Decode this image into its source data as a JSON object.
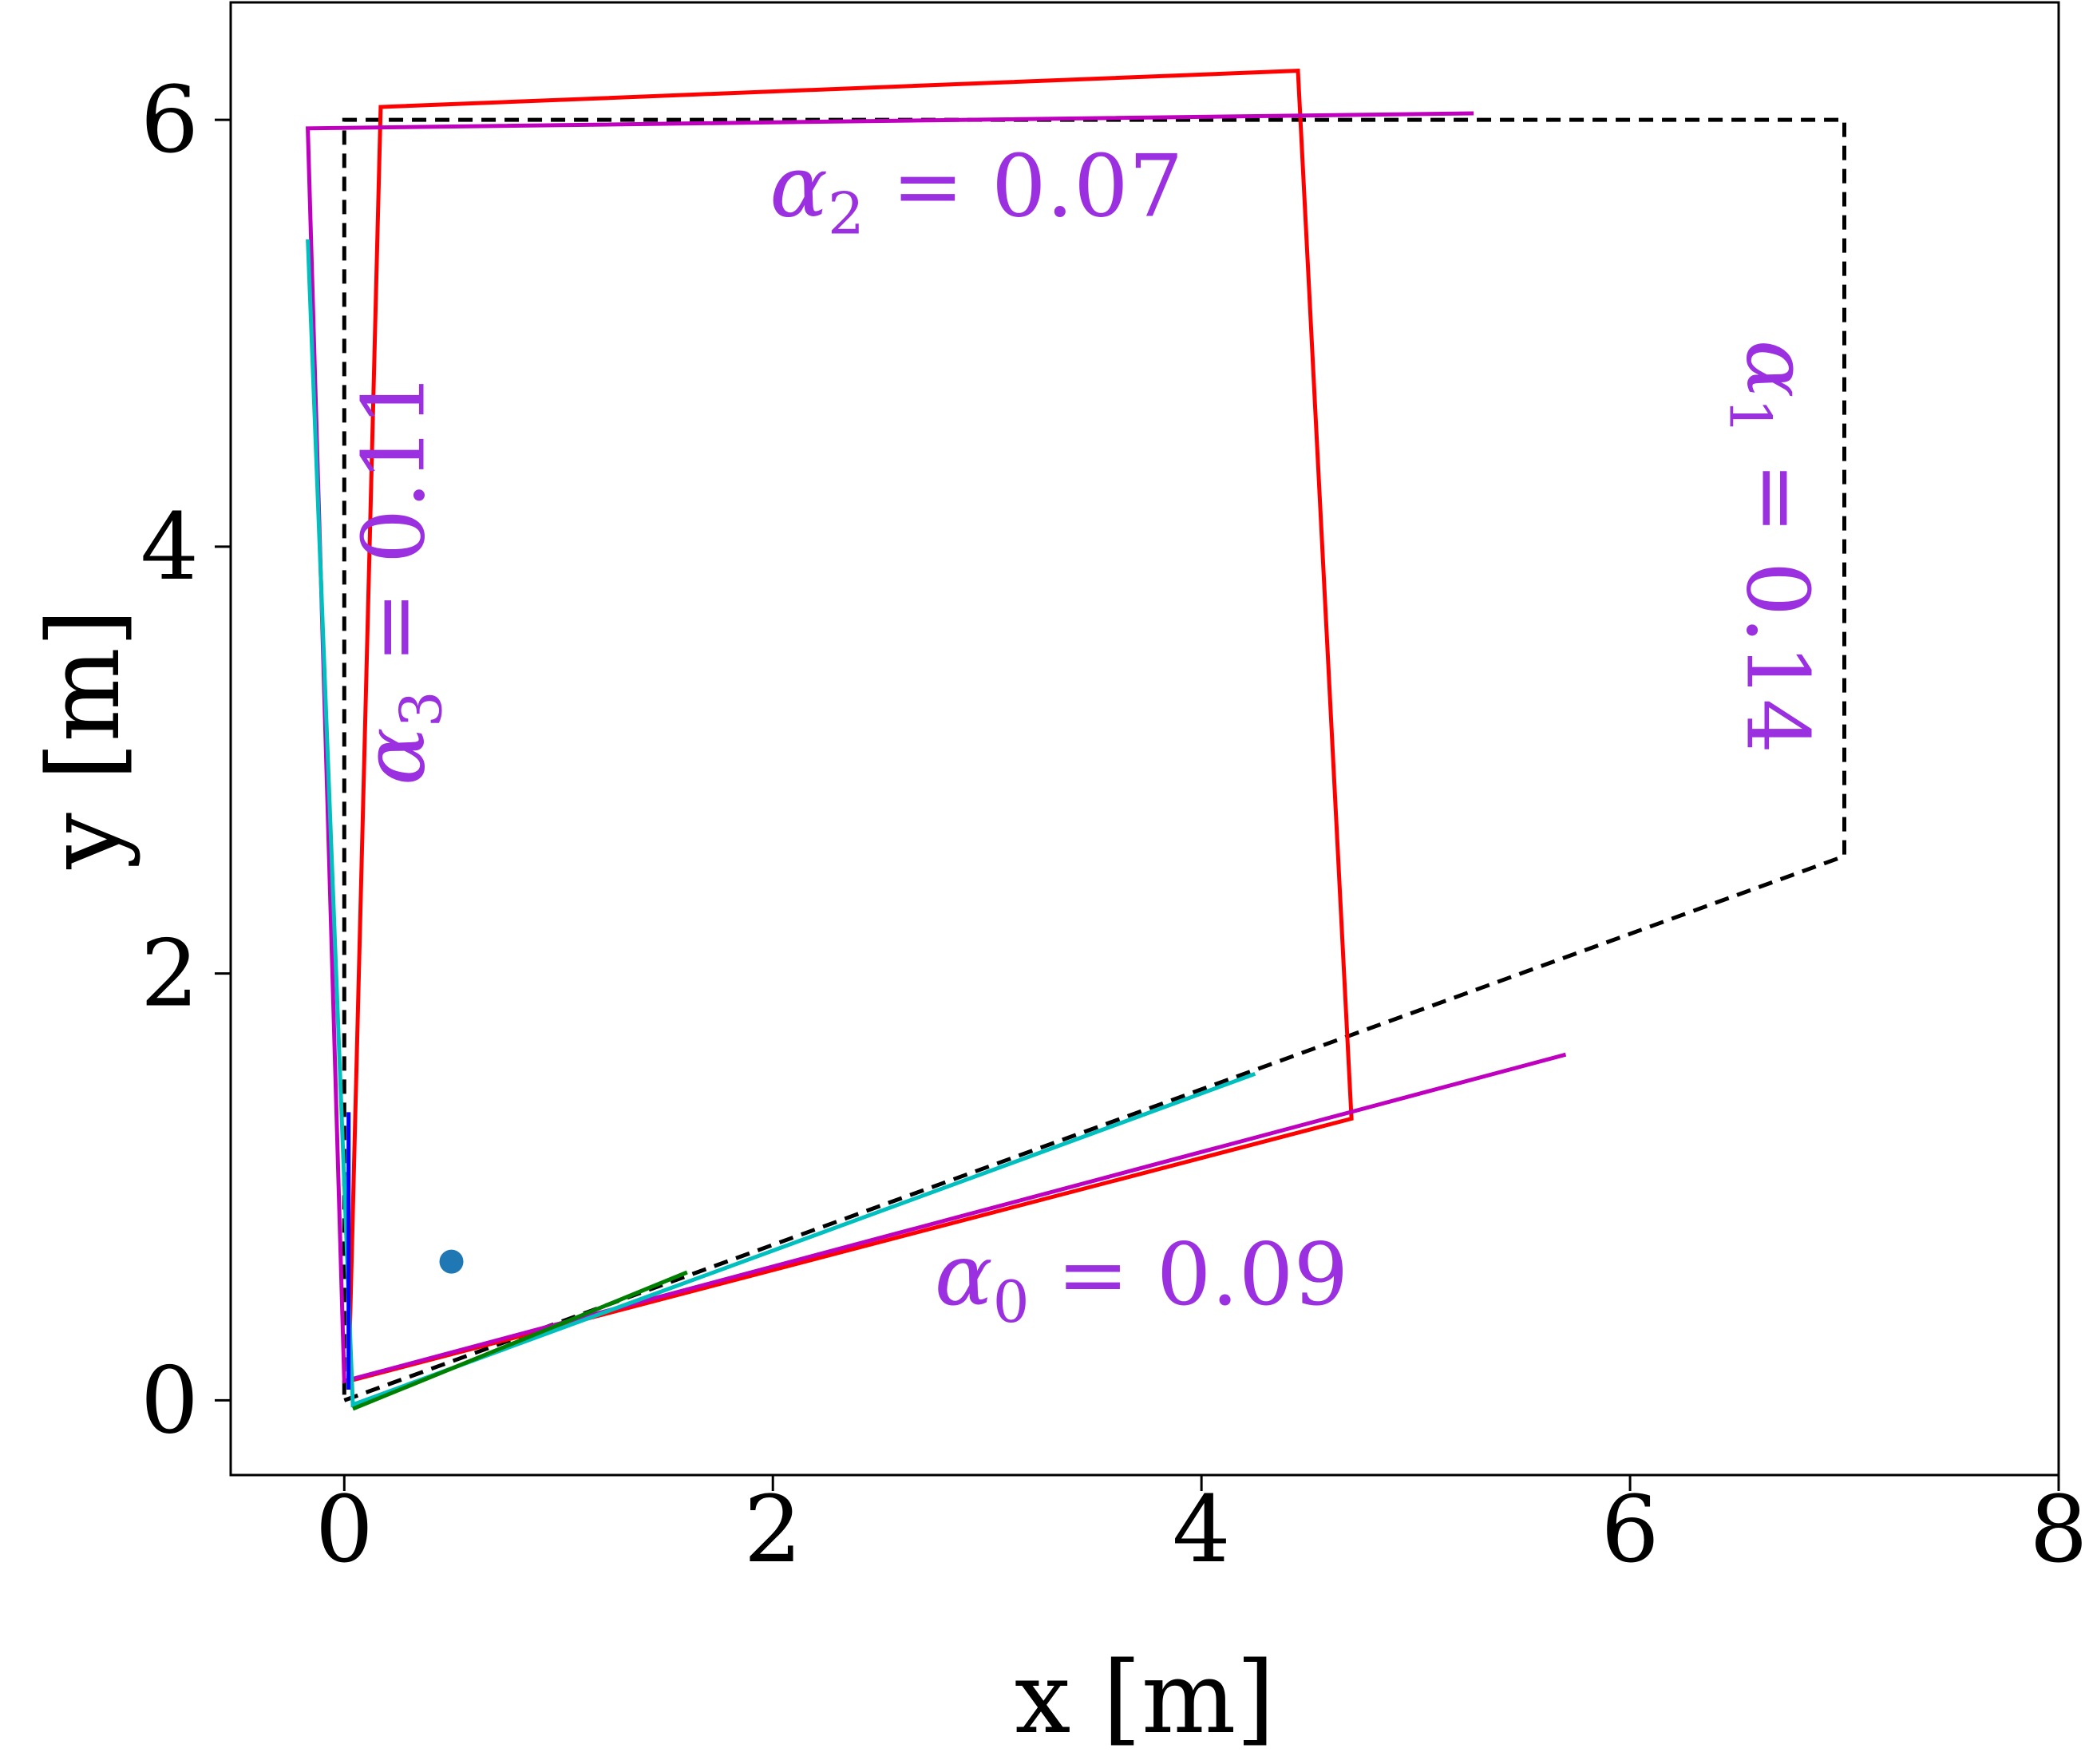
{
  "chart_data": {
    "type": "line",
    "xlabel": "x [m]",
    "ylabel": "y [m]",
    "xlim": [
      -0.53,
      8.0
    ],
    "ylim": [
      -0.35,
      6.55
    ],
    "xticks": [
      0,
      2,
      4,
      6,
      8
    ],
    "yticks": [
      0,
      2,
      4,
      6
    ],
    "xtick_labels": [
      "0",
      "2",
      "4",
      "6",
      "8"
    ],
    "ytick_labels": [
      "0",
      "2",
      "4",
      "6"
    ],
    "grid": false,
    "series": [
      {
        "color": "#000000",
        "style": "dashed",
        "points": [
          [
            0,
            0
          ],
          [
            7.0,
            2.55
          ],
          [
            7.0,
            6.0
          ],
          [
            0,
            6.0
          ],
          [
            0,
            0
          ]
        ]
      },
      {
        "color": "#ff0000",
        "style": "solid",
        "points": [
          [
            0.02,
            0.09
          ],
          [
            4.7,
            1.32
          ],
          [
            4.45,
            6.23
          ],
          [
            0.17,
            6.06
          ],
          [
            0.02,
            0.09
          ]
        ]
      },
      {
        "color": "#bf00bf",
        "style": "solid",
        "points": [
          [
            5.7,
            1.62
          ],
          [
            0.0,
            0.09
          ],
          [
            -0.17,
            5.96
          ],
          [
            5.27,
            6.03
          ]
        ]
      },
      {
        "color": "#00bfbf",
        "style": "solid",
        "points": [
          [
            4.25,
            1.53
          ],
          [
            0.04,
            -0.02
          ],
          [
            -0.17,
            5.44
          ]
        ]
      },
      {
        "color": "#008000",
        "style": "solid",
        "points": [
          [
            0.04,
            -0.04
          ],
          [
            1.6,
            0.6
          ]
        ]
      },
      {
        "color": "#0000ff",
        "style": "solid",
        "points": [
          [
            0.02,
            0.05
          ],
          [
            0.02,
            1.35
          ]
        ]
      }
    ],
    "markers": [
      {
        "x": 0.5,
        "y": 0.65,
        "color": "#1f77b4"
      }
    ],
    "annotations": [
      {
        "label": "α0 = 0.09",
        "greek": "α",
        "sub": "0",
        "rest": " = 0.09",
        "x": 3.72,
        "y": 0.45,
        "rotation": 0
      },
      {
        "label": "α1 = 0.14",
        "greek": "α",
        "sub": "1",
        "rest": " = 0.14",
        "x": 6.55,
        "y": 4.0,
        "rotation": 90
      },
      {
        "label": "α2 = 0.07",
        "greek": "α",
        "sub": "2",
        "rest": " = 0.07",
        "x": 2.95,
        "y": 5.55,
        "rotation": 0
      },
      {
        "label": "α3 = 0.11",
        "greek": "α",
        "sub": "3",
        "rest": " = 0.11",
        "x": 0.37,
        "y": 3.85,
        "rotation": -90
      }
    ]
  }
}
